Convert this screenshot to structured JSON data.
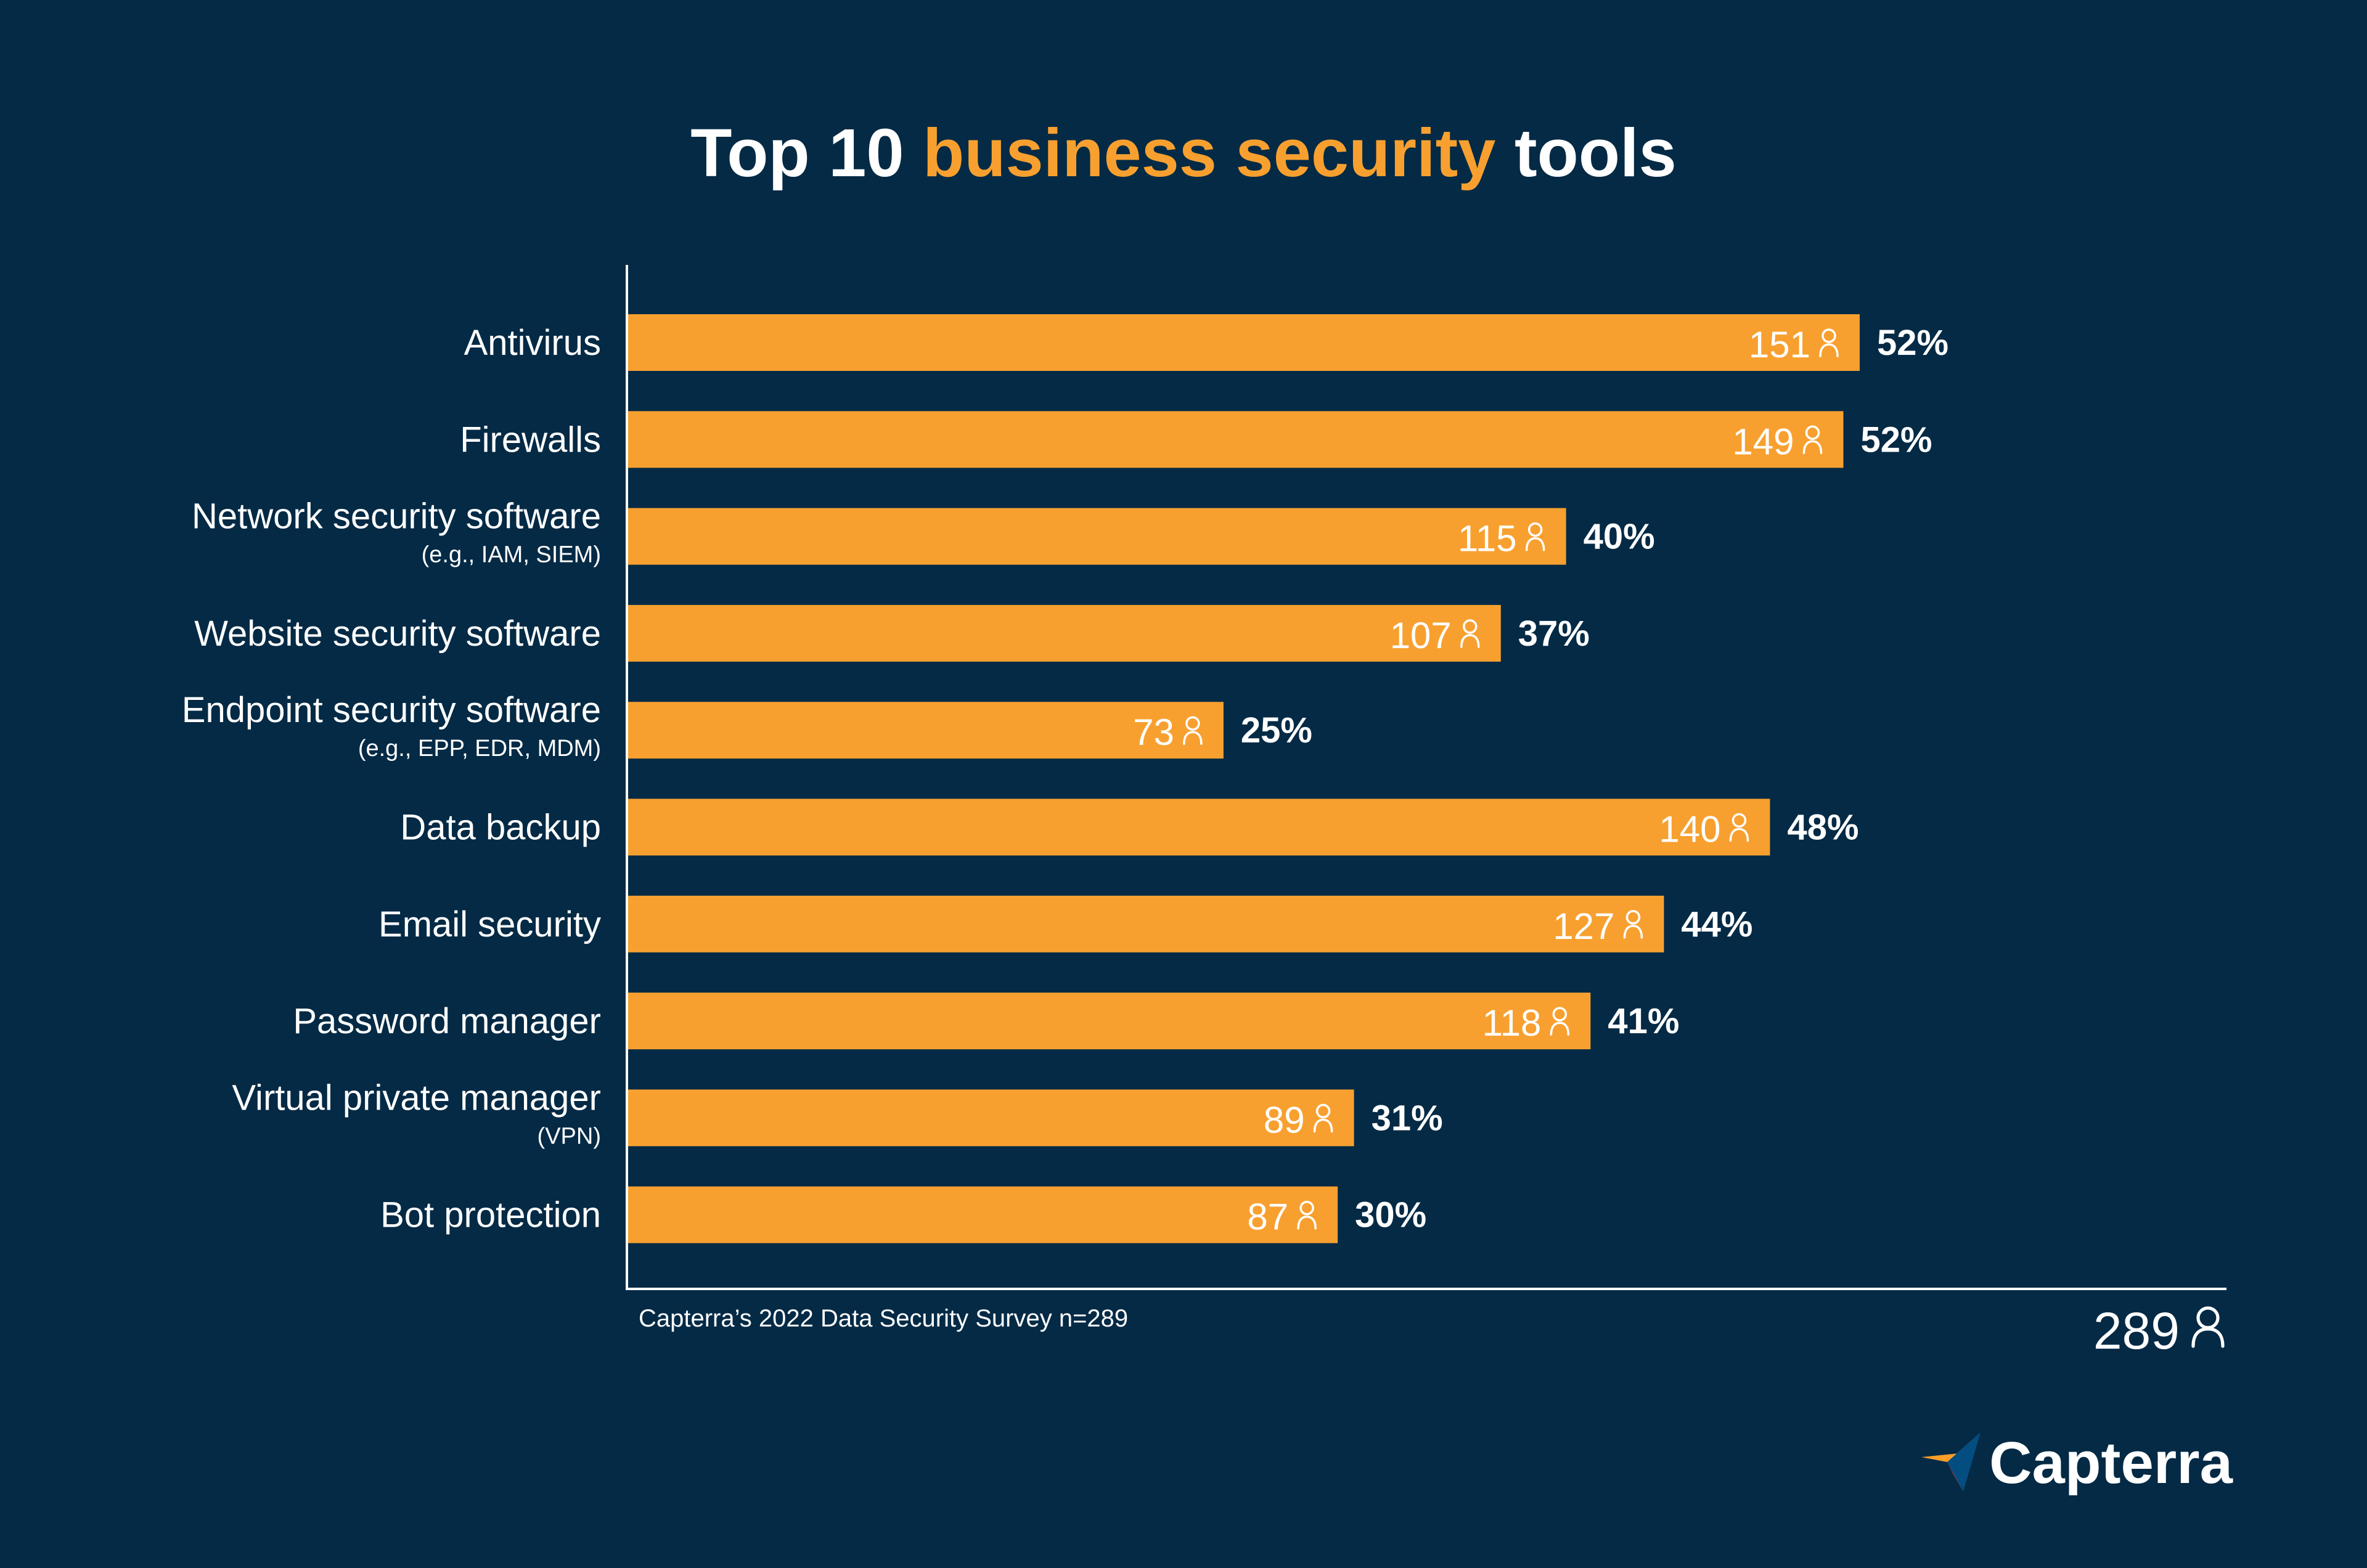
{
  "title": {
    "prefix": "Top 10 ",
    "highlight": "business security",
    "suffix": " tools"
  },
  "footnote": "Capterra’s 2022 Data Security Survey n=289",
  "total": {
    "value": "289",
    "icon": "person-icon"
  },
  "logo": {
    "text": "Capterra",
    "icon": "capterra-logo-icon"
  },
  "colors": {
    "background": "#042a45",
    "bar": "#f7a030",
    "accent": "#f7a030",
    "text": "#ffffff"
  },
  "chart_data": {
    "type": "bar",
    "orientation": "horizontal",
    "categories": [
      {
        "label": "Antivirus",
        "sublabel": ""
      },
      {
        "label": "Firewalls",
        "sublabel": ""
      },
      {
        "label": "Network security software",
        "sublabel": "(e.g., IAM, SIEM)"
      },
      {
        "label": "Website security software",
        "sublabel": ""
      },
      {
        "label": "Endpoint security software",
        "sublabel": "(e.g., EPP, EDR, MDM)"
      },
      {
        "label": "Data backup",
        "sublabel": ""
      },
      {
        "label": "Email security",
        "sublabel": ""
      },
      {
        "label": "Password manager",
        "sublabel": ""
      },
      {
        "label": "Virtual private manager",
        "sublabel": "(VPN)"
      },
      {
        "label": "Bot protection",
        "sublabel": ""
      }
    ],
    "values": [
      151,
      149,
      115,
      107,
      73,
      140,
      127,
      118,
      89,
      87
    ],
    "percent_labels": [
      "52%",
      "52%",
      "40%",
      "37%",
      "25%",
      "48%",
      "44%",
      "41%",
      "31%",
      "30%"
    ],
    "xlim": [
      0,
      289
    ],
    "value_icon": "person-icon",
    "grid": false
  }
}
